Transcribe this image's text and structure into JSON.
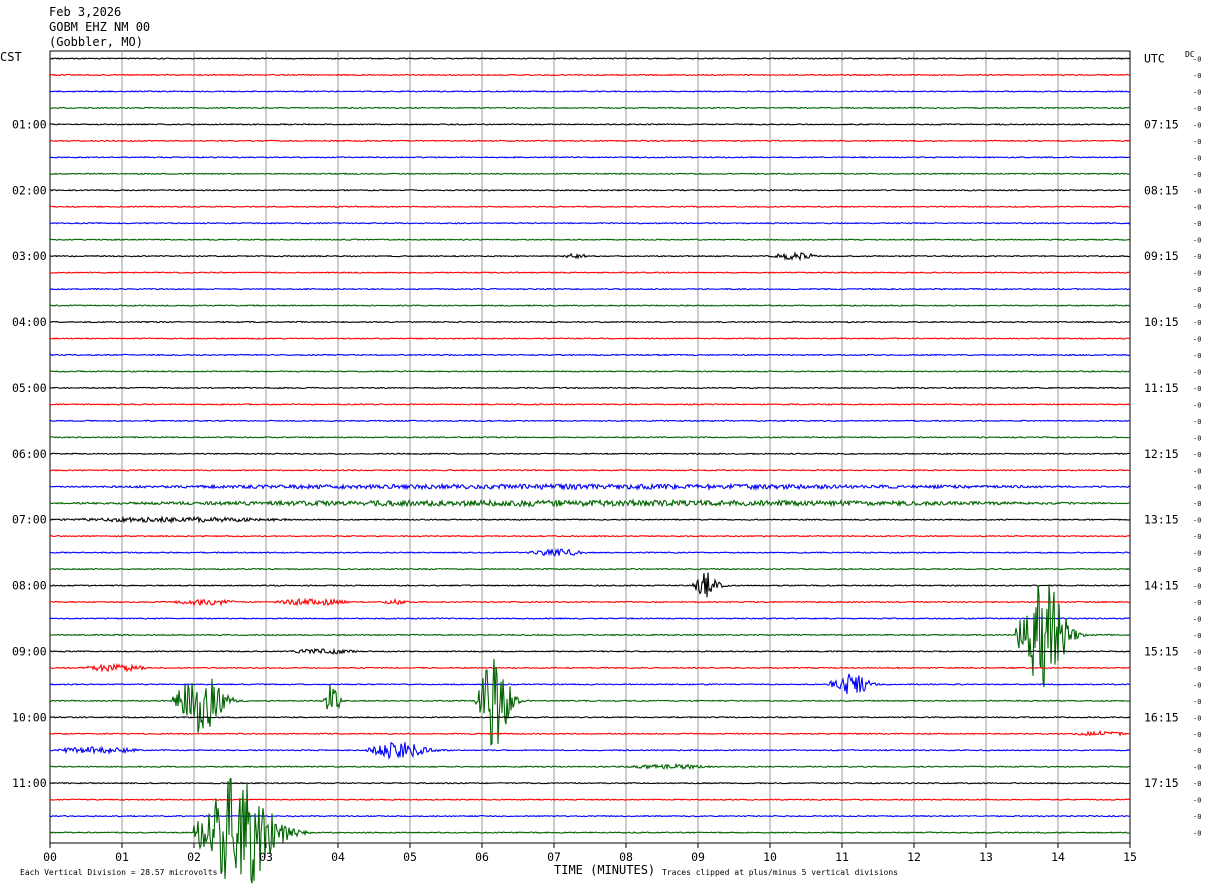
{
  "header": {
    "date": "Feb 3,2026",
    "station": "GOBM EHZ NM 00",
    "location": "(Gobbler, MO)"
  },
  "labels": {
    "left_tz": "CST",
    "right_tz": "UTC",
    "dc": "DC",
    "dc_mark": "0",
    "xlabel": "TIME (MINUTES)",
    "footer_left": "Each Vertical Division =   28.57 microvolts",
    "footer_right": "Traces clipped at plus/minus 5 vertical divisions"
  },
  "chart_data": {
    "type": "line",
    "title": "GOBM EHZ NM 00",
    "xlabel": "TIME (MINUTES)",
    "xlim": [
      0,
      15
    ],
    "x_ticks": [
      "00",
      "01",
      "02",
      "03",
      "04",
      "05",
      "06",
      "07",
      "08",
      "09",
      "10",
      "11",
      "12",
      "13",
      "14",
      "15"
    ],
    "trace_count": 48,
    "trace_minutes": 15,
    "trace_colors": [
      "#000000",
      "#ff0000",
      "#0000ff",
      "#006400"
    ],
    "left_time_labels": [
      {
        "trace": 4,
        "text": "01:00"
      },
      {
        "trace": 8,
        "text": "02:00"
      },
      {
        "trace": 12,
        "text": "03:00"
      },
      {
        "trace": 16,
        "text": "04:00"
      },
      {
        "trace": 20,
        "text": "05:00"
      },
      {
        "trace": 24,
        "text": "06:00"
      },
      {
        "trace": 28,
        "text": "07:00"
      },
      {
        "trace": 32,
        "text": "08:00"
      },
      {
        "trace": 36,
        "text": "09:00"
      },
      {
        "trace": 40,
        "text": "10:00"
      },
      {
        "trace": 44,
        "text": "11:00"
      }
    ],
    "right_time_labels": [
      {
        "trace": 0,
        "text": "UTC"
      },
      {
        "trace": 4,
        "text": "07:15"
      },
      {
        "trace": 8,
        "text": "08:15"
      },
      {
        "trace": 12,
        "text": "09:15"
      },
      {
        "trace": 16,
        "text": "10:15"
      },
      {
        "trace": 20,
        "text": "11:15"
      },
      {
        "trace": 24,
        "text": "12:15"
      },
      {
        "trace": 28,
        "text": "13:15"
      },
      {
        "trace": 32,
        "text": "14:15"
      },
      {
        "trace": 36,
        "text": "15:15"
      },
      {
        "trace": 40,
        "text": "16:15"
      },
      {
        "trace": 44,
        "text": "17:15"
      }
    ],
    "bursts": [
      {
        "trace": 12,
        "start_min": 7.1,
        "end_min": 7.5,
        "amp": 2
      },
      {
        "trace": 12,
        "start_min": 10.0,
        "end_min": 10.7,
        "amp": 3
      },
      {
        "trace": 26,
        "start_min": 0.0,
        "end_min": 15.0,
        "amp": 2
      },
      {
        "trace": 27,
        "start_min": 0.0,
        "end_min": 15.0,
        "amp": 2.5
      },
      {
        "trace": 28,
        "start_min": 0.0,
        "end_min": 3.5,
        "amp": 2
      },
      {
        "trace": 30,
        "start_min": 6.6,
        "end_min": 7.5,
        "amp": 3
      },
      {
        "trace": 32,
        "start_min": 8.9,
        "end_min": 9.6,
        "amp": 13
      },
      {
        "trace": 33,
        "start_min": 1.7,
        "end_min": 2.6,
        "amp": 3
      },
      {
        "trace": 33,
        "start_min": 3.1,
        "end_min": 4.2,
        "amp": 3
      },
      {
        "trace": 33,
        "start_min": 4.6,
        "end_min": 5.0,
        "amp": 2
      },
      {
        "trace": 35,
        "start_min": 13.4,
        "end_min": 14.7,
        "amp": 58
      },
      {
        "trace": 36,
        "start_min": 3.3,
        "end_min": 4.3,
        "amp": 2
      },
      {
        "trace": 37,
        "start_min": 0.4,
        "end_min": 1.4,
        "amp": 3
      },
      {
        "trace": 38,
        "start_min": 10.8,
        "end_min": 11.9,
        "amp": 11
      },
      {
        "trace": 39,
        "start_min": 1.7,
        "end_min": 3.0,
        "amp": 32
      },
      {
        "trace": 39,
        "start_min": 3.8,
        "end_min": 4.2,
        "amp": 18
      },
      {
        "trace": 39,
        "start_min": 5.9,
        "end_min": 6.8,
        "amp": 48
      },
      {
        "trace": 41,
        "start_min": 14.2,
        "end_min": 15.0,
        "amp": 2
      },
      {
        "trace": 42,
        "start_min": 0.0,
        "end_min": 1.3,
        "amp": 3
      },
      {
        "trace": 42,
        "start_min": 4.4,
        "end_min": 5.9,
        "amp": 9
      },
      {
        "trace": 43,
        "start_min": 8.0,
        "end_min": 9.2,
        "amp": 2
      },
      {
        "trace": 47,
        "start_min": 2.0,
        "end_min": 4.1,
        "amp": 60
      }
    ]
  }
}
